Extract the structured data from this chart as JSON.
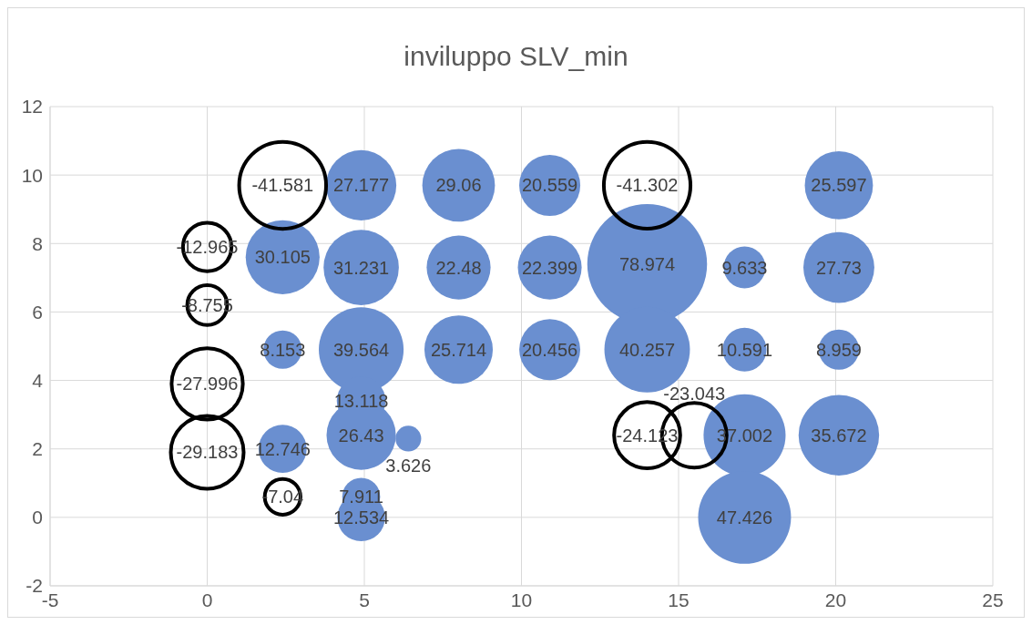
{
  "chart_data": {
    "type": "bubble",
    "title": "inviluppo SLV_min",
    "xlim": [
      -5,
      25
    ],
    "xticks": [
      -5,
      0,
      5,
      10,
      15,
      20,
      25
    ],
    "ylim": [
      -2,
      12
    ],
    "yticks": [
      -2,
      0,
      2,
      4,
      6,
      8,
      10,
      12
    ],
    "grid": true,
    "series": [
      {
        "color": "#6a8fd0",
        "x": [
          2.4,
          2.4,
          2.4,
          4.9,
          4.9,
          4.9,
          4.9,
          4.9,
          4.9,
          4.9,
          6.4,
          8,
          8,
          8,
          10.9,
          10.9,
          10.9,
          14,
          14,
          17.1,
          17.1,
          17.1,
          17.1,
          20.1,
          20.1,
          20.1,
          20.1
        ],
        "values": [
          7.6,
          4.9,
          2.0,
          9.7,
          7.3,
          4.9,
          3.4,
          2.4,
          0.6,
          0,
          2.3,
          9.7,
          7.3,
          4.9,
          9.7,
          7.3,
          4.9,
          7.4,
          4.9,
          7.3,
          4.9,
          2.4,
          0,
          9.7,
          7.3,
          4.9,
          2.4
        ],
        "sizes": [
          0.381,
          0.103,
          0.161,
          0.344,
          0.395,
          0.501,
          0.166,
          0.335,
          0.1,
          0.159,
          0.046,
          0.368,
          0.285,
          0.326,
          0.26,
          0.284,
          0.259,
          1,
          0.51,
          0.122,
          0.134,
          0.469,
          0.601,
          0.324,
          0.351,
          0.113,
          0.452
        ]
      },
      {
        "color": "#000000",
        "line_style": "solid",
        "x": [
          0,
          0,
          0,
          0,
          2.4,
          2.4,
          14,
          14,
          15.5
        ],
        "values": [
          7.9,
          6.2,
          3.9,
          1.9,
          9.7,
          0.6,
          9.7,
          2.4,
          2.4
        ],
        "sizes": [
          0.164,
          0.111,
          0.354,
          0.37,
          0.527,
          0.089,
          0.523,
          0.305,
          0.292
        ]
      }
    ],
    "annotations": [
      {
        "text": "30.105",
        "x": 2.4,
        "y": 7.6
      },
      {
        "text": "8.153",
        "x": 2.4,
        "y": 4.9
      },
      {
        "text": "12.746",
        "x": 2.4,
        "y": 2.0
      },
      {
        "text": "27.177",
        "x": 4.9,
        "y": 9.7
      },
      {
        "text": "31.231",
        "x": 4.9,
        "y": 7.3
      },
      {
        "text": "39.564",
        "x": 4.9,
        "y": 4.9
      },
      {
        "text": "13.118",
        "x": 4.9,
        "y": 3.4
      },
      {
        "text": "26.43",
        "x": 4.9,
        "y": 2.4
      },
      {
        "text": "7.911",
        "x": 4.9,
        "y": 0.6
      },
      {
        "text": "12.534",
        "x": 4.9,
        "y": 0
      },
      {
        "text": "3.626",
        "x": 6.4,
        "y": 2.3
      },
      {
        "text": "29.06",
        "x": 8,
        "y": 9.7
      },
      {
        "text": "22.48",
        "x": 8,
        "y": 7.3
      },
      {
        "text": "25.714",
        "x": 8,
        "y": 4.9
      },
      {
        "text": "20.559",
        "x": 10.9,
        "y": 9.7
      },
      {
        "text": "22.399",
        "x": 10.9,
        "y": 7.3
      },
      {
        "text": "20.456",
        "x": 10.9,
        "y": 4.9
      },
      {
        "text": "78.974",
        "x": 14,
        "y": 7.4
      },
      {
        "text": "40.257",
        "x": 14,
        "y": 4.9
      },
      {
        "text": "9.633",
        "x": 17.1,
        "y": 7.3
      },
      {
        "text": "10.591",
        "x": 17.1,
        "y": 4.9
      },
      {
        "text": "37.002",
        "x": 17.1,
        "y": 2.4
      },
      {
        "text": "47.426",
        "x": 17.1,
        "y": 0
      },
      {
        "text": "25.597",
        "x": 20.1,
        "y": 9.7
      },
      {
        "text": "27.73",
        "x": 20.1,
        "y": 7.3
      },
      {
        "text": "8.959",
        "x": 20.1,
        "y": 4.9
      },
      {
        "text": "35.672",
        "x": 20.1,
        "y": 2.4
      },
      {
        "text": "-12.965",
        "x": 0,
        "y": 7.9
      },
      {
        "text": "-8.755",
        "x": 0,
        "y": 6.2
      },
      {
        "text": "-27.996",
        "x": 0,
        "y": 3.9
      },
      {
        "text": "-29.183",
        "x": 0,
        "y": 1.9
      },
      {
        "text": "-41.581",
        "x": 2.4,
        "y": 9.7
      },
      {
        "text": "-7.04",
        "x": 2.4,
        "y": 0.6
      },
      {
        "text": "-41.302",
        "x": 14,
        "y": 9.7
      },
      {
        "text": "-24.123",
        "x": 14,
        "y": 2.4
      },
      {
        "text": "-23.043",
        "x": 15.5,
        "y": 2.4
      }
    ]
  }
}
